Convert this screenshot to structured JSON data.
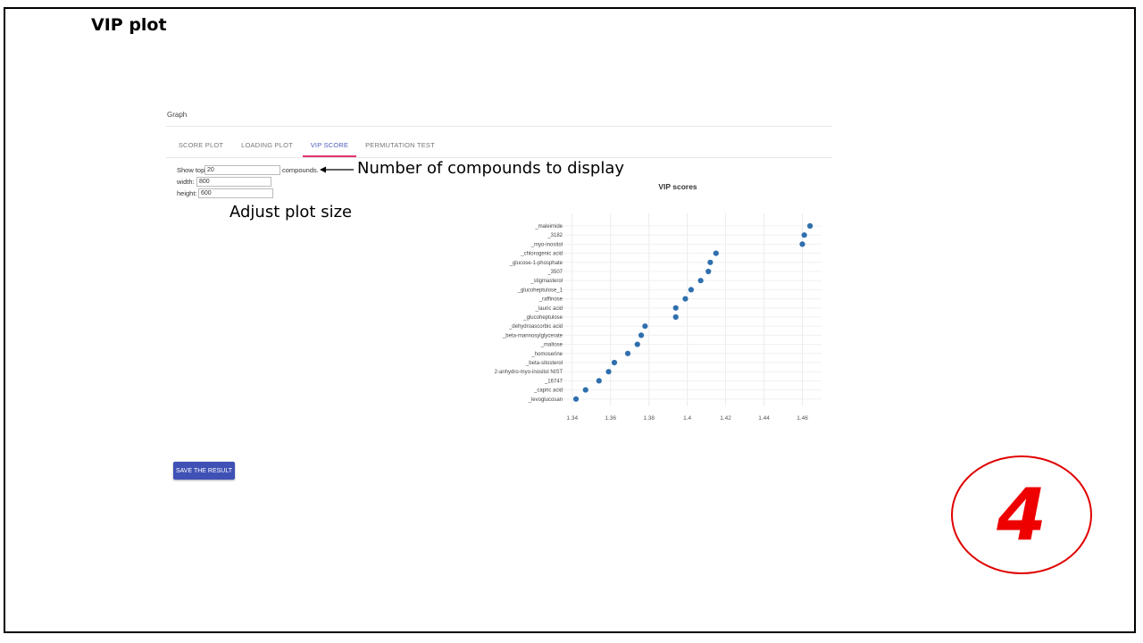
{
  "slide": {
    "title": "VIP plot"
  },
  "panel": {
    "title": "Graph"
  },
  "tabs": [
    {
      "label": "SCORE PLOT"
    },
    {
      "label": "LOADING PLOT"
    },
    {
      "label": "VIP SCORE"
    },
    {
      "label": "PERMUTATION TEST"
    }
  ],
  "active_tab": "VIP SCORE",
  "controls": {
    "show_top_label": "Show top",
    "show_top_value": "20",
    "compounds_label": "compounds.",
    "width_label": "width:",
    "width_value": "800",
    "height_label": "height:",
    "height_value": "600"
  },
  "annotations": {
    "compounds": "Number of compounds to display",
    "plot_size": "Adjust plot size"
  },
  "save_button": "SAVE THE RESULT",
  "badge": {
    "number": "4",
    "color": "#ee0000"
  },
  "colors": {
    "accent": "#3f51b5",
    "tab_indicator": "#e2336f",
    "marker": "#2f6fae"
  },
  "chart_data": {
    "type": "scatter",
    "title": "VIP scores",
    "xlabel": "",
    "ylabel": "",
    "xlim": [
      1.335,
      1.47
    ],
    "xticks": [
      "1.34",
      "1.36",
      "1.38",
      "1.4",
      "1.42",
      "1.44",
      "1.46"
    ],
    "grid": true,
    "categories": [
      "_maleimide",
      "_3182",
      "_myo-inositol",
      "_chlorogenic acid",
      "_glucose-1-phosphate",
      "_3507",
      "_stigmasterol",
      "_glucoheptulose_1",
      "_raffinose",
      "_lauric acid",
      "_glucoheptulose",
      "_dehydroascorbic acid",
      "_beta-mannosylglycerate",
      "_maltose",
      "_homoserine",
      "_beta-sitosterol",
      "2-anhydro-myo-inositol NIST",
      "_16747",
      "_capric acid",
      "_levoglucosan"
    ],
    "values": [
      1.464,
      1.461,
      1.46,
      1.415,
      1.412,
      1.411,
      1.407,
      1.402,
      1.399,
      1.394,
      1.394,
      1.378,
      1.376,
      1.374,
      1.369,
      1.362,
      1.359,
      1.354,
      1.347,
      1.342
    ]
  }
}
